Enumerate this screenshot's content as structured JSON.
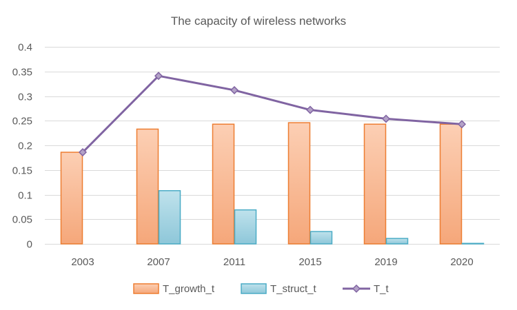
{
  "chart_data": {
    "type": "bar",
    "title": "The capacity of wireless networks",
    "categories": [
      "2003",
      "2007",
      "2011",
      "2015",
      "2019",
      "2020"
    ],
    "series": [
      {
        "name": "T_growth_t",
        "type": "bar",
        "values": [
          0.186,
          0.233,
          0.243,
          0.246,
          0.243,
          0.243
        ],
        "color": "#F8B48C",
        "stroke": "#ED7D31"
      },
      {
        "name": "T_struct_t",
        "type": "bar",
        "values": [
          0.0,
          0.108,
          0.069,
          0.025,
          0.011,
          0.001
        ],
        "color": "#A9D4E2",
        "stroke": "#4BACC6"
      },
      {
        "name": "T_t",
        "type": "line",
        "values": [
          0.186,
          0.341,
          0.312,
          0.272,
          0.254,
          0.243
        ],
        "color": "#8064A2"
      }
    ],
    "ylim": [
      0,
      0.4
    ],
    "yticks": [
      "0",
      "0.05",
      "0.1",
      "0.15",
      "0.2",
      "0.25",
      "0.3",
      "0.35",
      "0.4"
    ],
    "grid": true,
    "legend": "bottom"
  }
}
